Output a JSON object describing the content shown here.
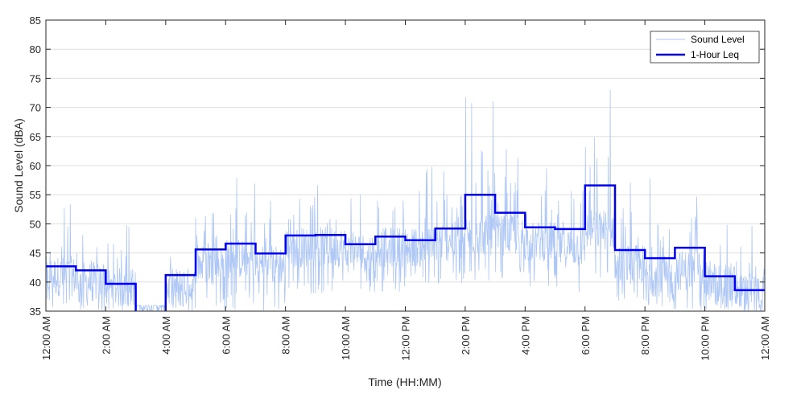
{
  "chart_data": {
    "type": "line",
    "xlabel": "Time (HH:MM)",
    "ylabel": "Sound Level (dBA)",
    "ylim": [
      35,
      85
    ],
    "yticks": [
      35,
      40,
      45,
      50,
      55,
      60,
      65,
      70,
      75,
      80,
      85
    ],
    "xlim_hours": [
      0,
      24
    ],
    "xticks": [
      {
        "hour": 0,
        "label": "12:00 AM"
      },
      {
        "hour": 2,
        "label": "2:00 AM"
      },
      {
        "hour": 4,
        "label": "4:00 AM"
      },
      {
        "hour": 6,
        "label": "6:00 AM"
      },
      {
        "hour": 8,
        "label": "8:00 AM"
      },
      {
        "hour": 10,
        "label": "10:00 AM"
      },
      {
        "hour": 12,
        "label": "12:00 PM"
      },
      {
        "hour": 14,
        "label": "2:00 PM"
      },
      {
        "hour": 16,
        "label": "4:00 PM"
      },
      {
        "hour": 18,
        "label": "6:00 PM"
      },
      {
        "hour": 20,
        "label": "8:00 PM"
      },
      {
        "hour": 22,
        "label": "10:00 PM"
      },
      {
        "hour": 24,
        "label": "12:00 AM"
      }
    ],
    "grid": "horizontal",
    "legend_position": "top-right",
    "series": [
      {
        "name": "Sound Level",
        "color": "#aec7f5",
        "hourly_mean": [
          41,
          40,
          39,
          37,
          39,
          43,
          44,
          43,
          46,
          46,
          45,
          46,
          46,
          47,
          48,
          48,
          47,
          46,
          49,
          43,
          41,
          42,
          40,
          38
        ],
        "hourly_range": [
          [
            35,
            54
          ],
          [
            35,
            53
          ],
          [
            35,
            50
          ],
          [
            35,
            36
          ],
          [
            35,
            45
          ],
          [
            35,
            52
          ],
          [
            35,
            58
          ],
          [
            35,
            55
          ],
          [
            38,
            59
          ],
          [
            38,
            57
          ],
          [
            38,
            55
          ],
          [
            38,
            59
          ],
          [
            39,
            60
          ],
          [
            39,
            60
          ],
          [
            40,
            72
          ],
          [
            40,
            63
          ],
          [
            39,
            61
          ],
          [
            38,
            62
          ],
          [
            38,
            74
          ],
          [
            35,
            58
          ],
          [
            35,
            58
          ],
          [
            35,
            56
          ],
          [
            35,
            55
          ],
          [
            35,
            51
          ]
        ]
      },
      {
        "name": "1-Hour Leq",
        "color": "#0000ee",
        "hours": [
          0,
          1,
          2,
          3,
          4,
          5,
          6,
          7,
          8,
          9,
          10,
          11,
          12,
          13,
          14,
          15,
          16,
          17,
          18,
          19,
          20,
          21,
          22,
          23
        ],
        "values": [
          42.7,
          42.0,
          39.7,
          30.0,
          41.2,
          45.6,
          46.6,
          44.9,
          48.0,
          48.1,
          46.5,
          47.8,
          47.2,
          49.2,
          55.0,
          51.9,
          49.4,
          49.1,
          56.6,
          45.5,
          44.1,
          45.9,
          41.0,
          38.6
        ]
      }
    ]
  }
}
